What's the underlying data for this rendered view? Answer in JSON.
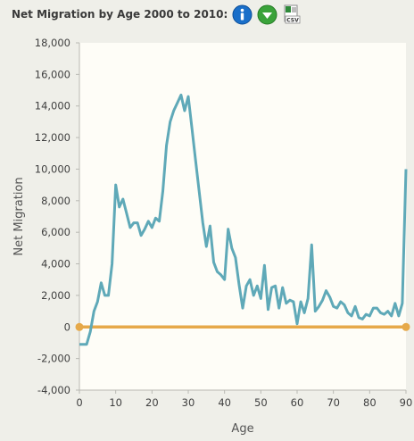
{
  "header": {
    "title": "Net Migration by Age 2000 to 2010:"
  },
  "icons": {
    "info": "info-icon",
    "download": "download-icon",
    "csv": "csv-icon",
    "csv_label": "CSV"
  },
  "colors": {
    "series": "#5fa9b8",
    "zero_line": "#e6a94a",
    "plot_bg": "#fefdf7",
    "page_bg": "#efefe9",
    "info_icon": "#1a6fc9",
    "download_icon": "#3aa33a"
  },
  "chart_data": {
    "type": "line",
    "xlabel": "Age",
    "ylabel": "Net Migration",
    "xlim": [
      0,
      90
    ],
    "ylim": [
      -4000,
      18000
    ],
    "x_ticks": [
      "0",
      "10",
      "20",
      "30",
      "40",
      "50",
      "60",
      "70",
      "80",
      "90"
    ],
    "y_ticks": [
      "18,000",
      "16,000",
      "14,000",
      "12,000",
      "10,000",
      "8,000",
      "6,000",
      "4,000",
      "2,000",
      "0",
      "-2,000",
      "-4,000"
    ],
    "grid": false,
    "series": [
      {
        "x": [
          0,
          1,
          2,
          3,
          4,
          5,
          6,
          7,
          8,
          9,
          10,
          11,
          12,
          13,
          14,
          15,
          16,
          17,
          18,
          19,
          20,
          21,
          22,
          23,
          24,
          25,
          26,
          27,
          28,
          29,
          30,
          31,
          32,
          33,
          34,
          35,
          36,
          37,
          38,
          39,
          40,
          41,
          42,
          43,
          44,
          45,
          46,
          47,
          48,
          49,
          50,
          51,
          52,
          53,
          54,
          55,
          56,
          57,
          58,
          59,
          60,
          61,
          62,
          63,
          64,
          65,
          66,
          67,
          68,
          69,
          70,
          71,
          72,
          73,
          74,
          75,
          76,
          77,
          78,
          79,
          80,
          81,
          82,
          83,
          84,
          85,
          86,
          87,
          88,
          89,
          90
        ],
        "values": [
          -1100,
          -1100,
          -1100,
          -300,
          1000,
          1600,
          2800,
          2000,
          2000,
          4000,
          9000,
          7600,
          8100,
          7200,
          6300,
          6600,
          6600,
          5800,
          6200,
          6700,
          6300,
          6900,
          6700,
          8600,
          11500,
          13000,
          13700,
          14200,
          14700,
          13700,
          14600,
          12600,
          10600,
          8600,
          6600,
          5100,
          6400,
          4100,
          3500,
          3300,
          3000,
          6200,
          5000,
          4400,
          2700,
          1200,
          2600,
          3000,
          2000,
          2600,
          1800,
          3900,
          1100,
          2500,
          2600,
          1200,
          2500,
          1500,
          1700,
          1600,
          200,
          1600,
          900,
          1800,
          5200,
          1000,
          1300,
          1700,
          2300,
          1900,
          1300,
          1200,
          1600,
          1400,
          900,
          700,
          1300,
          600,
          500,
          800,
          700,
          1200,
          1200,
          900,
          800,
          1000,
          700,
          1500,
          700,
          1500,
          10000
        ]
      }
    ],
    "zero_line": {
      "y": 0,
      "from_x": 0,
      "to_x": 90
    }
  }
}
